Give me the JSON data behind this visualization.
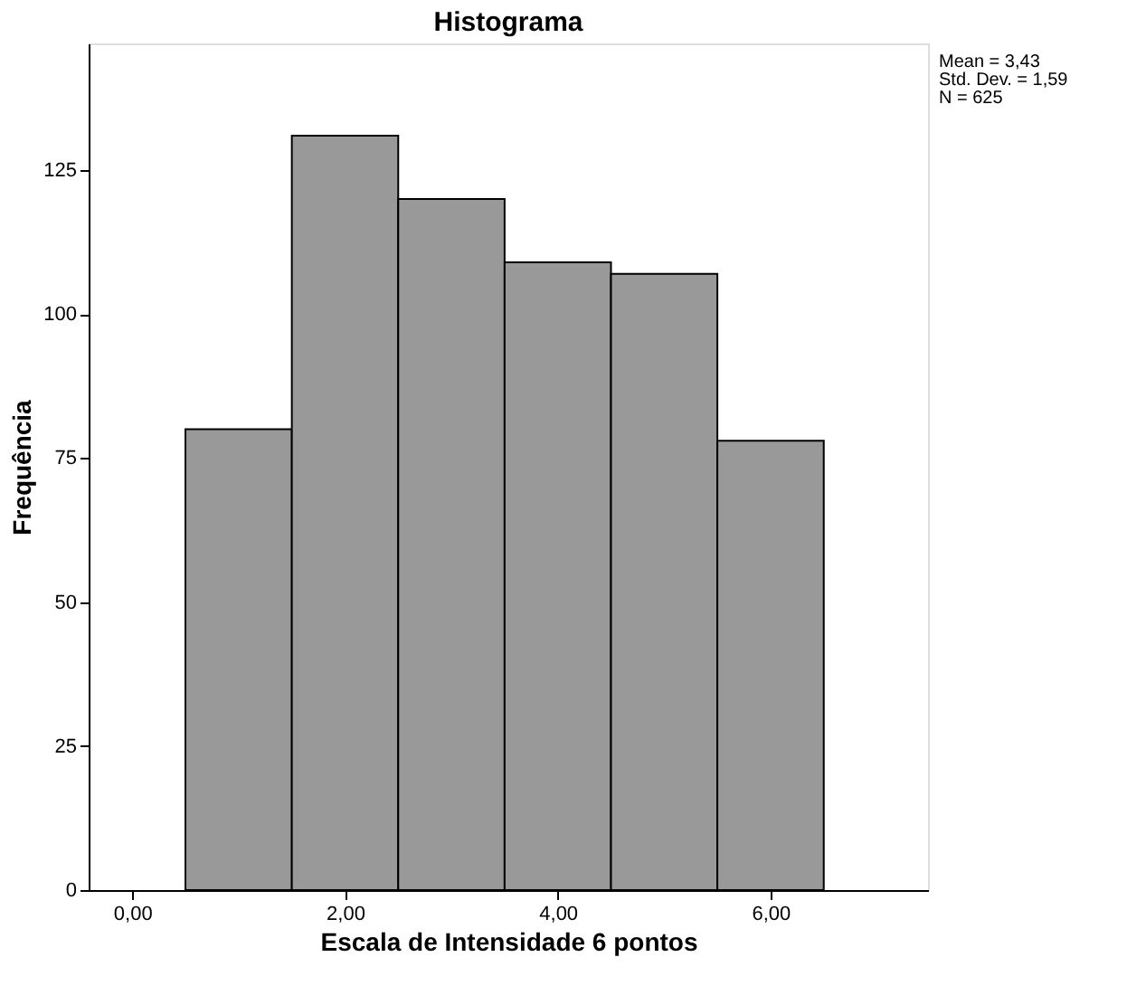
{
  "chart_data": {
    "type": "histogram",
    "title": "Histograma",
    "xlabel": "Escala de Intensidade 6 pontos",
    "ylabel": "Frequência",
    "bins": [
      0.5,
      1.5,
      2.5,
      3.5,
      4.5,
      5.5,
      6.5
    ],
    "values": [
      80,
      131,
      120,
      109,
      107,
      78
    ],
    "color": "#999999",
    "xlim": [
      -0.41,
      7.48
    ],
    "xticks": [
      {
        "value": 0,
        "label": "0,00"
      },
      {
        "value": 2,
        "label": "2,00"
      },
      {
        "value": 4,
        "label": "4,00"
      },
      {
        "value": 6,
        "label": "6,00"
      }
    ],
    "ylim": [
      0,
      147
    ],
    "yticks": [
      0,
      25,
      50,
      75,
      100,
      125
    ],
    "grid": false,
    "annotations": [
      "Mean = 3,43",
      "Std. Dev. = 1,59",
      "N = 625"
    ]
  }
}
